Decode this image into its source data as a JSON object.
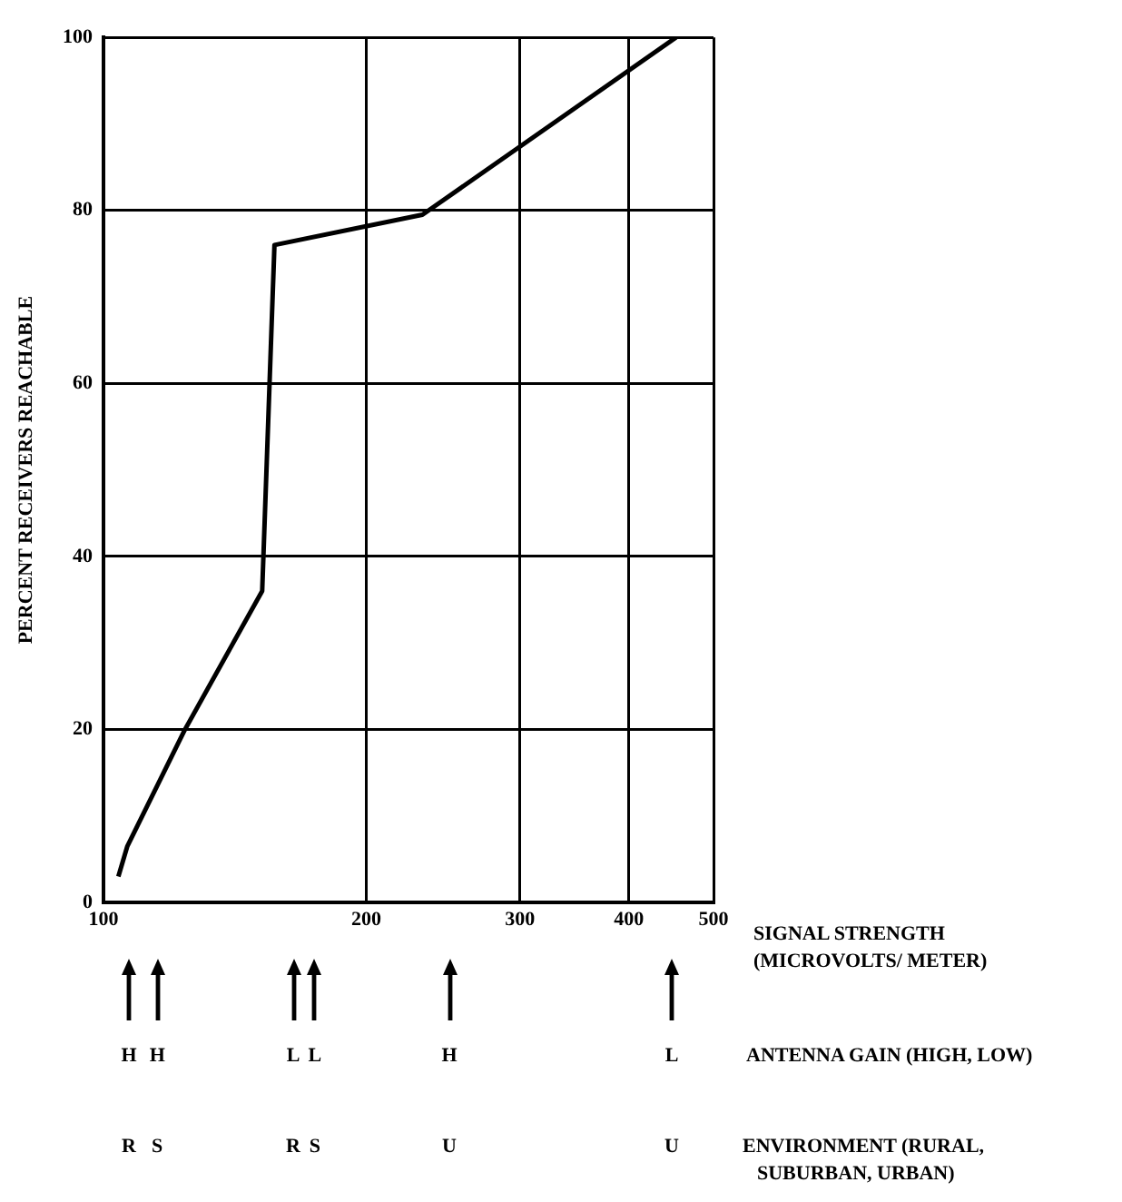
{
  "chart_data": {
    "type": "line",
    "xlabel": "SIGNAL STRENGTH\n(MICROVOLTS/ METER)",
    "ylabel": "PERCENT RECEIVERS REACHABLE",
    "x": [
      104,
      106.5,
      124,
      152,
      157,
      232,
      453
    ],
    "series": [
      {
        "color": "#000000",
        "values": [
          3,
          6.5,
          20,
          36,
          76,
          79.5,
          100
        ]
      }
    ],
    "xlim": [
      100,
      500
    ],
    "xticks": [
      100,
      200,
      300,
      400,
      500
    ],
    "ylim": [
      0,
      100
    ],
    "yticks": [
      0,
      20,
      40,
      60,
      80,
      100
    ],
    "log": "x",
    "grid": true,
    "legend": false,
    "marker": "none",
    "line_style": "solid",
    "annotations": [
      "ANTENNA GAIN (HIGH, LOW)",
      "ENVIRONMENT (RURAL,\nSUBURBAN, URBAN)",
      "H",
      "R",
      "H",
      "S",
      "L",
      "R",
      "L",
      "S",
      "H",
      "U",
      "L",
      "U"
    ]
  }
}
